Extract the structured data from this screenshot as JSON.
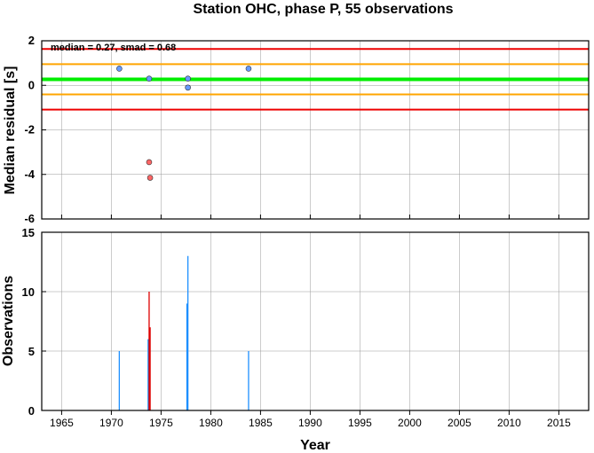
{
  "title": "Station OHC, phase P, 55 observations",
  "colors": {
    "median_line": "#00ee00",
    "inner_band": "#ffa500",
    "outer_band": "#ee0000",
    "point_blue": "#6699ff",
    "point_red": "#ff6666",
    "bar_blue": "#1e90ff",
    "bar_red": "#dd0000",
    "grid": "#999999"
  },
  "chart_data": [
    {
      "type": "scatter",
      "ylabel": "Median residual [s]",
      "xlim": [
        1963,
        2018
      ],
      "ylim": [
        -6,
        2
      ],
      "yticks": [
        "2",
        "0",
        "-2",
        "-4",
        "-6"
      ],
      "ytick_values": [
        2,
        0,
        -2,
        -4,
        -6
      ],
      "grid": true,
      "annotation": "median = 0.27, smad = 0.68",
      "reference_lines": {
        "median": 0.27,
        "inner_upper": 0.95,
        "inner_lower": -0.41,
        "outer_upper": 1.63,
        "outer_lower": -1.09
      },
      "series": [
        {
          "points": [
            [
              1970.8,
              0.75
            ],
            [
              1973.8,
              0.3
            ],
            [
              1977.7,
              0.3
            ],
            [
              1977.7,
              -0.1
            ],
            [
              1983.8,
              0.75
            ]
          ],
          "color": "blue"
        },
        {
          "points": [
            [
              1973.8,
              -3.45
            ],
            [
              1973.9,
              -4.15
            ]
          ],
          "color": "red"
        }
      ]
    },
    {
      "type": "bar",
      "xlabel": "Year",
      "ylabel": "Observations",
      "xlim": [
        1963,
        2018
      ],
      "ylim": [
        0,
        15
      ],
      "xticks": [
        "1965",
        "1970",
        "1975",
        "1980",
        "1985",
        "1990",
        "1995",
        "2000",
        "2005",
        "2010",
        "2015"
      ],
      "xtick_values": [
        1965,
        1970,
        1975,
        1980,
        1985,
        1990,
        1995,
        2000,
        2005,
        2010,
        2015
      ],
      "yticks": [
        "15",
        "10",
        "5",
        "0"
      ],
      "ytick_values": [
        15,
        10,
        5,
        0
      ],
      "grid": true,
      "bars": [
        {
          "x": 1970.8,
          "value": 5,
          "color": "blue"
        },
        {
          "x": 1973.7,
          "value": 6,
          "color": "blue"
        },
        {
          "x": 1973.8,
          "value": 10,
          "color": "red"
        },
        {
          "x": 1973.9,
          "value": 7,
          "color": "red"
        },
        {
          "x": 1977.6,
          "value": 9,
          "color": "blue"
        },
        {
          "x": 1977.7,
          "value": 13,
          "color": "blue"
        },
        {
          "x": 1983.8,
          "value": 5,
          "color": "blue"
        }
      ]
    }
  ]
}
